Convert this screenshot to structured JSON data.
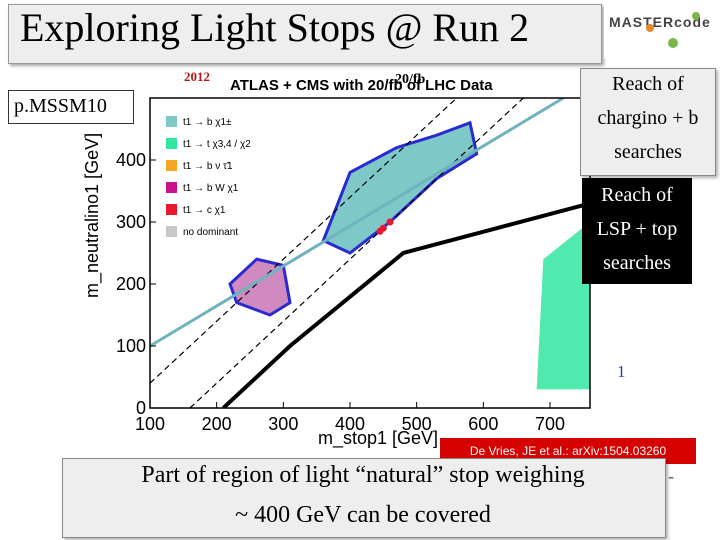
{
  "slide": {
    "title": "Exploring Light Stops @ Run 2",
    "logo_text": "MASTERcode",
    "model_label": "p.MSSM10",
    "reach_chargino_lines": [
      "Reach of",
      "chargino + b",
      "searches"
    ],
    "reach_lsp_lines": [
      "Reach of",
      "LSP + top",
      "searches"
    ],
    "year_label": "2012",
    "lumi_label": "20/fb",
    "page_marker": "1",
    "citation": "De Vries, JE et al.: arXiv:1504.03260",
    "conclusion_lines": [
      "Part of region of light “natural” stop weighing",
      "~ 400 GeV can be covered"
    ],
    "trailing_mark": "-"
  },
  "chart_data": {
    "type": "scatter",
    "title": "ATLAS + CMS with 20/fb of LHC Data",
    "xlabel": "m_stop1 [GeV]",
    "ylabel": "m_neutralino1 [GeV]",
    "xlim": [
      100,
      760
    ],
    "ylim": [
      0,
      500
    ],
    "xticks": [
      100,
      200,
      300,
      400,
      500,
      600,
      700
    ],
    "yticks": [
      0,
      100,
      200,
      300,
      400
    ],
    "legend": [
      {
        "label": "t1 → b χ1±",
        "color": "#7ec8c8"
      },
      {
        "label": "t1 → t χ3,4 / χ2",
        "color": "#33e6a0"
      },
      {
        "label": "t1 → b ν τ̃1",
        "color": "#f5a623"
      },
      {
        "label": "t1 → b W χ1",
        "color": "#c8148c"
      },
      {
        "label": "t1 → c χ1",
        "color": "#e8192c"
      },
      {
        "label": "no dominant",
        "color": "#c8c8c8"
      }
    ],
    "series": [
      {
        "name": "kinematic limit m_stop = m_LSP + m_top",
        "points": [
          [
            210,
            0
          ],
          [
            310,
            100
          ],
          [
            480,
            250
          ],
          [
            760,
            330
          ]
        ]
      },
      {
        "name": "dashed boundary upper",
        "points": [
          [
            100,
            40
          ],
          [
            560,
            500
          ]
        ]
      },
      {
        "name": "dashed boundary lower",
        "points": [
          [
            160,
            0
          ],
          [
            660,
            500
          ]
        ]
      },
      {
        "name": "chargino reach line",
        "points": [
          [
            100,
            100
          ],
          [
            720,
            500
          ]
        ]
      }
    ],
    "regions": [
      {
        "name": "compressed stop region (purple contour)",
        "points": [
          [
            220,
            200
          ],
          [
            260,
            240
          ],
          [
            300,
            230
          ],
          [
            310,
            170
          ],
          [
            280,
            150
          ],
          [
            230,
            170
          ]
        ]
      },
      {
        "name": "main stop region (blue contour)",
        "points": [
          [
            360,
            270
          ],
          [
            400,
            380
          ],
          [
            470,
            420
          ],
          [
            530,
            440
          ],
          [
            580,
            460
          ],
          [
            590,
            410
          ],
          [
            530,
            370
          ],
          [
            460,
            300
          ],
          [
            400,
            250
          ]
        ]
      },
      {
        "name": "heavy stop region (green)",
        "points": [
          [
            680,
            30
          ],
          [
            760,
            30
          ],
          [
            760,
            300
          ],
          [
            690,
            240
          ]
        ]
      }
    ]
  }
}
